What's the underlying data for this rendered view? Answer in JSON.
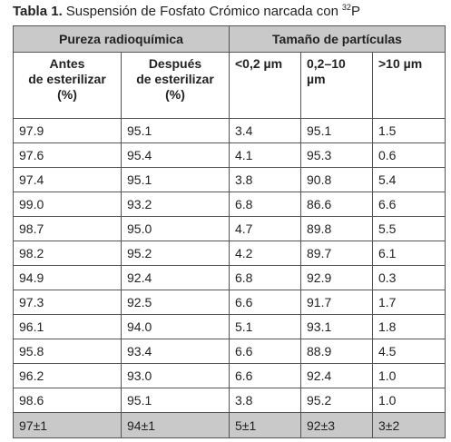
{
  "title": {
    "label": "Tabla 1.",
    "text": "Suspensión de Fosfato Crómico narcada con",
    "isotope_mass": "32",
    "isotope_symbol": "P"
  },
  "table": {
    "group_headers": [
      "Pureza radioquímica",
      "Tamaño de partículas"
    ],
    "column_headers": [
      [
        "Antes",
        "de esterilizar",
        "(%)"
      ],
      [
        "Después",
        "de esterilizar",
        "(%)"
      ],
      [
        "<0,2 µm"
      ],
      [
        "0,2–10",
        "µm"
      ],
      [
        ">10 µm"
      ]
    ],
    "rows": [
      [
        "97.9",
        "95.1",
        "3.4",
        "95.1",
        "1.5"
      ],
      [
        "97.6",
        "95.4",
        "4.1",
        "95.3",
        "0.6"
      ],
      [
        "97.4",
        "95.1",
        "3.8",
        "90.8",
        "5.4"
      ],
      [
        "99.0",
        "93.2",
        "6.8",
        "86.6",
        "6.6"
      ],
      [
        "98.7",
        "95.0",
        "4.7",
        "89.8",
        "5.5"
      ],
      [
        "98.2",
        "95.2",
        "4.2",
        "89.7",
        "6.1"
      ],
      [
        "94.9",
        "92.4",
        "6.8",
        "92.9",
        "0.3"
      ],
      [
        "97.3",
        "92.5",
        "6.6",
        "91.7",
        "1.7"
      ],
      [
        "96.1",
        "94.0",
        "5.1",
        "93.1",
        "1.8"
      ],
      [
        "95.8",
        "93.4",
        "6.6",
        "88.9",
        "4.5"
      ],
      [
        "96.2",
        "93.0",
        "6.6",
        "92.4",
        "1.0"
      ],
      [
        "98.6",
        "95.1",
        "3.8",
        "95.2",
        "1.0"
      ]
    ],
    "summary": [
      "97±1",
      "94±1",
      "5±1",
      "92±3",
      "3±2"
    ]
  }
}
